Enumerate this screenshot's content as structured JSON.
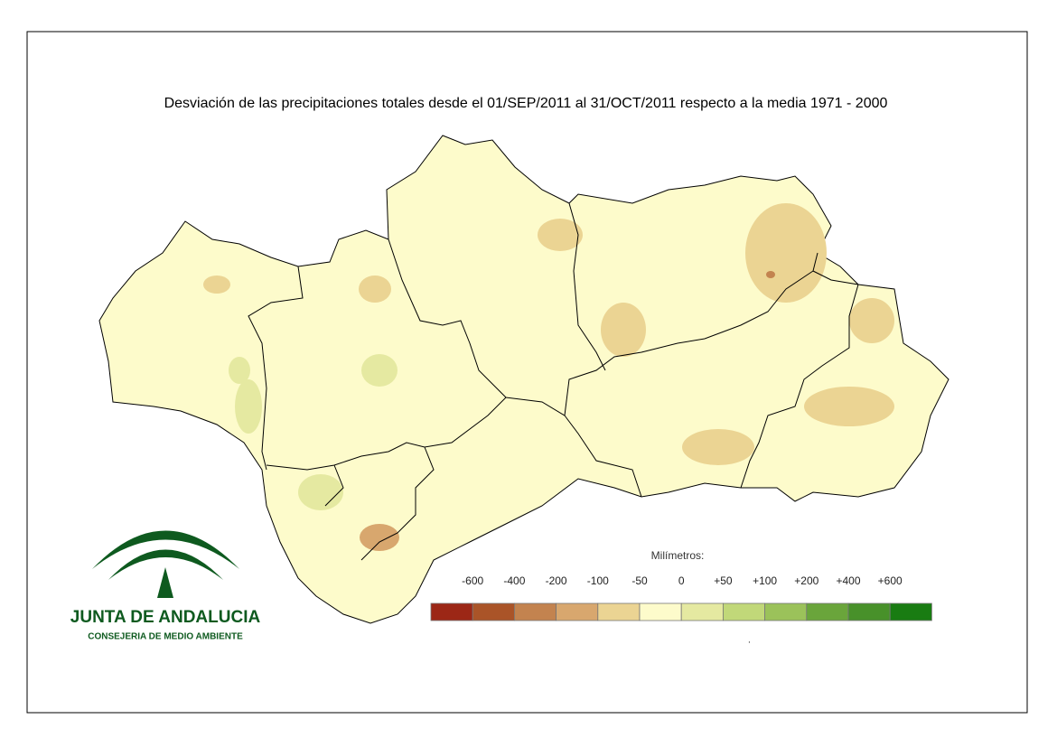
{
  "title": "Desviación de las precipitaciones totales desde el 01/SEP/2011 al  31/OCT/2011 respecto a la media 1971 - 2000",
  "legend": {
    "title": "Milímetros:",
    "labels": [
      "-600",
      "-400",
      "-200",
      "-100",
      "-50",
      "0",
      "+50",
      "+100",
      "+200",
      "+400",
      "+600"
    ],
    "colors": [
      "#9c2716",
      "#aa5428",
      "#c3834f",
      "#d8a76e",
      "#ebd493",
      "#fdfbcb",
      "#e5e9a1",
      "#c1d879",
      "#9bc25a",
      "#6aa53b",
      "#48912a",
      "#197c12"
    ]
  },
  "logo": {
    "name": "JUNTA DE ANDALUCIA",
    "subtitle": "CONSEJERIA DE MEDIO AMBIENTE"
  }
}
